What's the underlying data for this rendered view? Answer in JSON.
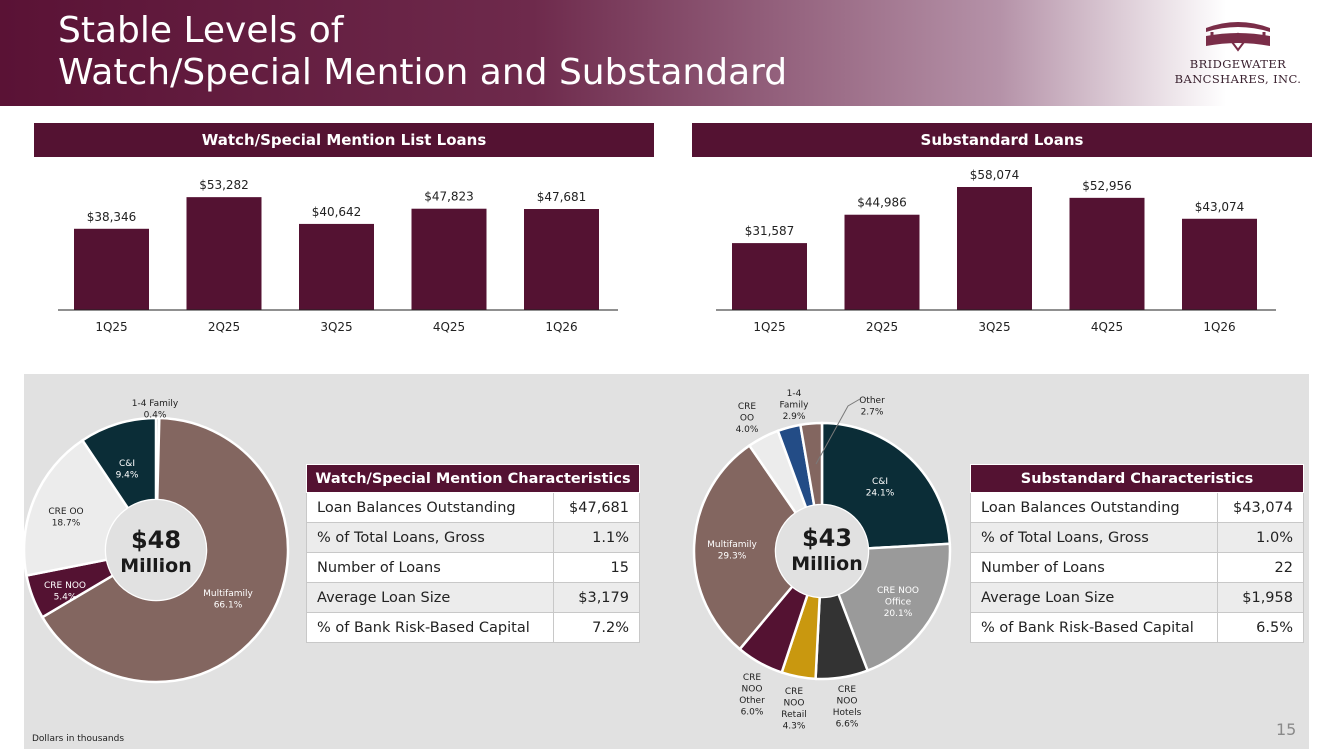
{
  "title": {
    "line1": "Stable Levels of",
    "line2": "Watch/Special Mention and Substandard"
  },
  "logo": {
    "line1": "BRIDGEWATER",
    "line2": "BANCSHARES, INC."
  },
  "colors": {
    "primary": "#541232",
    "panel": "#e1e1e1"
  },
  "chart_data": [
    {
      "type": "bar",
      "title": "Watch/Special Mention List Loans",
      "categories": [
        "1Q25",
        "2Q25",
        "3Q25",
        "4Q25",
        "1Q26"
      ],
      "values": [
        38346,
        53282,
        40642,
        47823,
        47681
      ],
      "labels": [
        "$38,346",
        "$53,282",
        "$40,642",
        "$47,823",
        "$47,681"
      ],
      "ylim": [
        0,
        58074
      ]
    },
    {
      "type": "bar",
      "title": "Substandard Loans",
      "categories": [
        "1Q25",
        "2Q25",
        "3Q25",
        "4Q25",
        "1Q26"
      ],
      "values": [
        31587,
        44986,
        58074,
        52956,
        43074
      ],
      "labels": [
        "$31,587",
        "$44,986",
        "$58,074",
        "$52,956",
        "$43,074"
      ],
      "ylim": [
        0,
        58074
      ]
    },
    {
      "type": "pie",
      "center": {
        "amount": "$48",
        "unit": "Million"
      },
      "slices": [
        {
          "name": "1-4 Family",
          "value": 0.4,
          "label": "0.4%",
          "color": "#d0d0d0"
        },
        {
          "name": "Multifamily",
          "value": 66.1,
          "label": "66.1%",
          "color": "#836660"
        },
        {
          "name": "CRE NOO",
          "value": 5.4,
          "label": "5.4%",
          "color": "#541232"
        },
        {
          "name": "CRE OO",
          "value": 18.7,
          "label": "18.7%",
          "color": "#ececec"
        },
        {
          "name": "C&I",
          "value": 9.4,
          "label": "9.4%",
          "color": "#0b2d37"
        }
      ]
    },
    {
      "type": "pie",
      "center": {
        "amount": "$43",
        "unit": "Million"
      },
      "slices": [
        {
          "name": "C&I",
          "value": 24.1,
          "label": "24.1%",
          "color": "#0b2d37"
        },
        {
          "name": "CRE NOO Office",
          "value": 20.1,
          "label": "20.1%",
          "color": "#9a9a9a"
        },
        {
          "name": "CRE NOO Hotels",
          "value": 6.6,
          "label": "6.6%",
          "color": "#333333"
        },
        {
          "name": "CRE NOO Retail",
          "value": 4.3,
          "label": "4.3%",
          "color": "#c9980f"
        },
        {
          "name": "CRE NOO Other",
          "value": 6.0,
          "label": "6.0%",
          "color": "#541232"
        },
        {
          "name": "Multifamily",
          "value": 29.3,
          "label": "29.3%",
          "color": "#836660"
        },
        {
          "name": "CRE OO",
          "value": 4.0,
          "label": "4.0%",
          "color": "#ececec"
        },
        {
          "name": "1-4 Family",
          "value": 2.9,
          "label": "2.9%",
          "color": "#234c86"
        },
        {
          "name": "Other",
          "value": 2.7,
          "label": "2.7%",
          "color": "#836660"
        }
      ]
    }
  ],
  "watch_table": {
    "title": "Watch/Special Mention Characteristics",
    "rows": [
      {
        "label": "Loan Balances Outstanding",
        "value": "$47,681"
      },
      {
        "label": "% of Total Loans, Gross",
        "value": "1.1%"
      },
      {
        "label": "Number of Loans",
        "value": "15"
      },
      {
        "label": "Average Loan Size",
        "value": "$3,179"
      },
      {
        "label": "% of Bank Risk-Based Capital",
        "value": "7.2%"
      }
    ]
  },
  "sub_table": {
    "title": "Substandard Characteristics",
    "rows": [
      {
        "label": "Loan Balances Outstanding",
        "value": "$43,074"
      },
      {
        "label": "% of Total Loans, Gross",
        "value": "1.0%"
      },
      {
        "label": "Number of Loans",
        "value": "22"
      },
      {
        "label": "Average Loan Size",
        "value": "$1,958"
      },
      {
        "label": "% of Bank Risk-Based Capital",
        "value": "6.5%"
      }
    ]
  },
  "footnote": "Dollars in thousands",
  "page_number": "15"
}
